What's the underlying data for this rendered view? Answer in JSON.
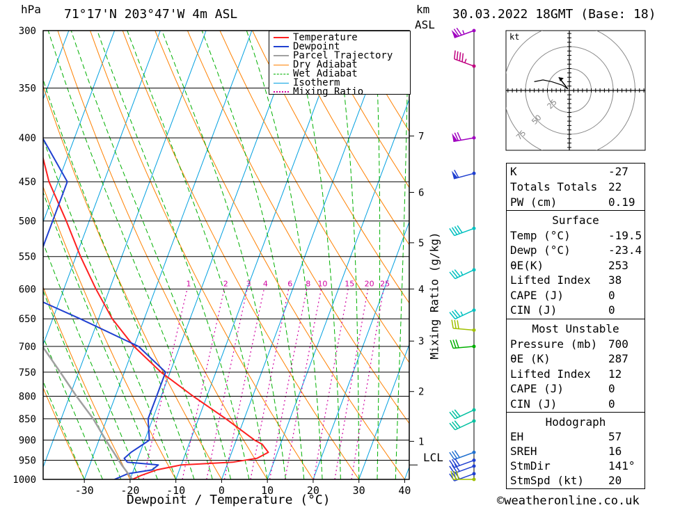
{
  "header": {
    "hpa_label": "hPa",
    "location": "71°17'N  203°47'W  4m  ASL",
    "km_label": "km",
    "asl_label": "ASL",
    "datetime": "30.03.2022  18GMT  (Base: 18)"
  },
  "axes": {
    "xlabel": "Dewpoint / Temperature (°C)",
    "mixing_label": "Mixing Ratio (g/kg)",
    "footer": "©weatheronline.co.uk",
    "kt_label": "kt",
    "lcl_label": "LCL"
  },
  "legend": [
    {
      "label": "Temperature",
      "color": "#ff2020",
      "style": "solid"
    },
    {
      "label": "Dewpoint",
      "color": "#2040d0",
      "style": "solid"
    },
    {
      "label": "Parcel Trajectory",
      "color": "#a0a0a0",
      "style": "solid"
    },
    {
      "label": "Dry Adiabat",
      "color": "#ff8000",
      "style": "solid"
    },
    {
      "label": "Wet Adiabat",
      "color": "#00b000",
      "style": "dashed"
    },
    {
      "label": "Isotherm",
      "color": "#00a0e0",
      "style": "solid"
    },
    {
      "label": "Mixing Ratio",
      "color": "#d000a0",
      "style": "dotted"
    }
  ],
  "chart_data": {
    "type": "line",
    "title": "Skew-T log-P sounding",
    "xlabel": "Dewpoint / Temperature (°C)",
    "ylabel": "hPa",
    "pressure_levels": [
      300,
      350,
      400,
      450,
      500,
      550,
      600,
      650,
      700,
      750,
      800,
      850,
      900,
      950,
      1000
    ],
    "x_ticks": [
      -30,
      -20,
      -10,
      0,
      10,
      20,
      30,
      40
    ],
    "xlim": [
      -39,
      41
    ],
    "ylim": [
      1000,
      300
    ],
    "skew_deg_per_log": 70,
    "mixing_ratios": [
      "1",
      "2",
      "3",
      "4",
      "6",
      "8",
      "10",
      "15",
      "20",
      "25"
    ],
    "mixing_values": [
      1,
      2,
      3,
      4,
      6,
      8,
      10,
      15,
      20,
      25
    ],
    "km_ticks": [
      {
        "km": "1",
        "p": 903
      },
      {
        "km": "2",
        "p": 790
      },
      {
        "km": "3",
        "p": 690
      },
      {
        "km": "4",
        "p": 600
      },
      {
        "km": "5",
        "p": 530
      },
      {
        "km": "6",
        "p": 463
      },
      {
        "km": "7",
        "p": 398
      }
    ],
    "lcl_pressure": 962,
    "series": [
      {
        "name": "Temperature",
        "color": "#ff2020",
        "p": [
          1000,
          990,
          975,
          962,
          955,
          945,
          930,
          910,
          900,
          850,
          800,
          750,
          700,
          650,
          600,
          550,
          500,
          450,
          400,
          350,
          300
        ],
        "t": [
          -19.5,
          -18,
          -15,
          -10,
          1,
          6,
          8,
          6,
          4,
          -4,
          -13,
          -22,
          -30,
          -37,
          -43,
          -49,
          -55,
          -62,
          -68,
          -74,
          -77
        ]
      },
      {
        "name": "Dewpoint",
        "color": "#2040d0",
        "p": [
          1000,
          985,
          975,
          962,
          955,
          945,
          930,
          910,
          900,
          850,
          800,
          750,
          700,
          650,
          620,
          600,
          550,
          500,
          450,
          400,
          350,
          300
        ],
        "t": [
          -23.4,
          -21,
          -16,
          -15,
          -22,
          -23,
          -22,
          -20,
          -19,
          -21,
          -21,
          -21,
          -29,
          -44,
          -54,
          -55,
          -58,
          -58,
          -58,
          -67,
          -73,
          -80
        ]
      },
      {
        "name": "Parcel Trajectory",
        "color": "#a0a0a0",
        "p": [
          1000,
          962,
          900,
          850,
          800,
          750,
          700,
          650,
          600,
          550
        ],
        "t": [
          -19.5,
          -23,
          -28.5,
          -33,
          -38.5,
          -44,
          -50,
          -56,
          -62,
          -68
        ]
      }
    ],
    "wind_levels": [
      {
        "p": 300,
        "dir": 250,
        "spd": 75,
        "color": "#a000c0"
      },
      {
        "p": 330,
        "dir": 290,
        "spd": 45,
        "color": "#c00080"
      },
      {
        "p": 400,
        "dir": 260,
        "spd": 70,
        "color": "#a000c0"
      },
      {
        "p": 440,
        "dir": 255,
        "spd": 60,
        "color": "#2040d0"
      },
      {
        "p": 510,
        "dir": 250,
        "spd": 40,
        "color": "#00c0c0"
      },
      {
        "p": 570,
        "dir": 245,
        "spd": 35,
        "color": "#00c0c0"
      },
      {
        "p": 635,
        "dir": 245,
        "spd": 35,
        "color": "#00c0c0"
      },
      {
        "p": 670,
        "dir": 275,
        "spd": 30,
        "color": "#a0c000"
      },
      {
        "p": 700,
        "dir": 265,
        "spd": 30,
        "color": "#00b000"
      },
      {
        "p": 830,
        "dir": 245,
        "spd": 30,
        "color": "#00c0a0"
      },
      {
        "p": 855,
        "dir": 245,
        "spd": 30,
        "color": "#00c0a0"
      },
      {
        "p": 930,
        "dir": 250,
        "spd": 30,
        "color": "#2070d0"
      },
      {
        "p": 950,
        "dir": 250,
        "spd": 30,
        "color": "#2040d0"
      },
      {
        "p": 965,
        "dir": 250,
        "spd": 30,
        "color": "#2040d0"
      },
      {
        "p": 985,
        "dir": 250,
        "spd": 30,
        "color": "#2040d0"
      },
      {
        "p": 1000,
        "dir": 270,
        "spd": 30,
        "color": "#a0c000"
      }
    ],
    "hodograph": {
      "rings": [
        25,
        50,
        75
      ],
      "ring_labels": [
        "25",
        "50",
        "75"
      ],
      "max_kt": 100,
      "points_u": [
        -2,
        -8,
        -14,
        -20,
        -30,
        -40
      ],
      "points_v": [
        2,
        6,
        8,
        10,
        12,
        10
      ],
      "storm_u": -12,
      "storm_v": 15
    }
  },
  "indices": {
    "rows": [
      {
        "k": "K",
        "v": "-27"
      },
      {
        "k": "Totals Totals",
        "v": "22"
      },
      {
        "k": "PW (cm)",
        "v": "0.19"
      }
    ]
  },
  "surface": {
    "title": "Surface",
    "rows": [
      {
        "k": "Temp (°C)",
        "v": "-19.5"
      },
      {
        "k": "Dewp (°C)",
        "v": "-23.4"
      },
      {
        "k": "θE(K)",
        "v": "253"
      },
      {
        "k": "Lifted Index",
        "v": "38"
      },
      {
        "k": "CAPE (J)",
        "v": "0"
      },
      {
        "k": "CIN (J)",
        "v": "0"
      }
    ]
  },
  "unstable": {
    "title": "Most Unstable",
    "rows": [
      {
        "k": "Pressure (mb)",
        "v": "700"
      },
      {
        "k": "θE (K)",
        "v": "287"
      },
      {
        "k": "Lifted Index",
        "v": "12"
      },
      {
        "k": "CAPE (J)",
        "v": "0"
      },
      {
        "k": "CIN (J)",
        "v": "0"
      }
    ]
  },
  "hodo_table": {
    "title": "Hodograph",
    "rows": [
      {
        "k": "EH",
        "v": "57"
      },
      {
        "k": "SREH",
        "v": "16"
      },
      {
        "k": "StmDir",
        "v": "141°"
      },
      {
        "k": "StmSpd (kt)",
        "v": "20"
      }
    ]
  }
}
